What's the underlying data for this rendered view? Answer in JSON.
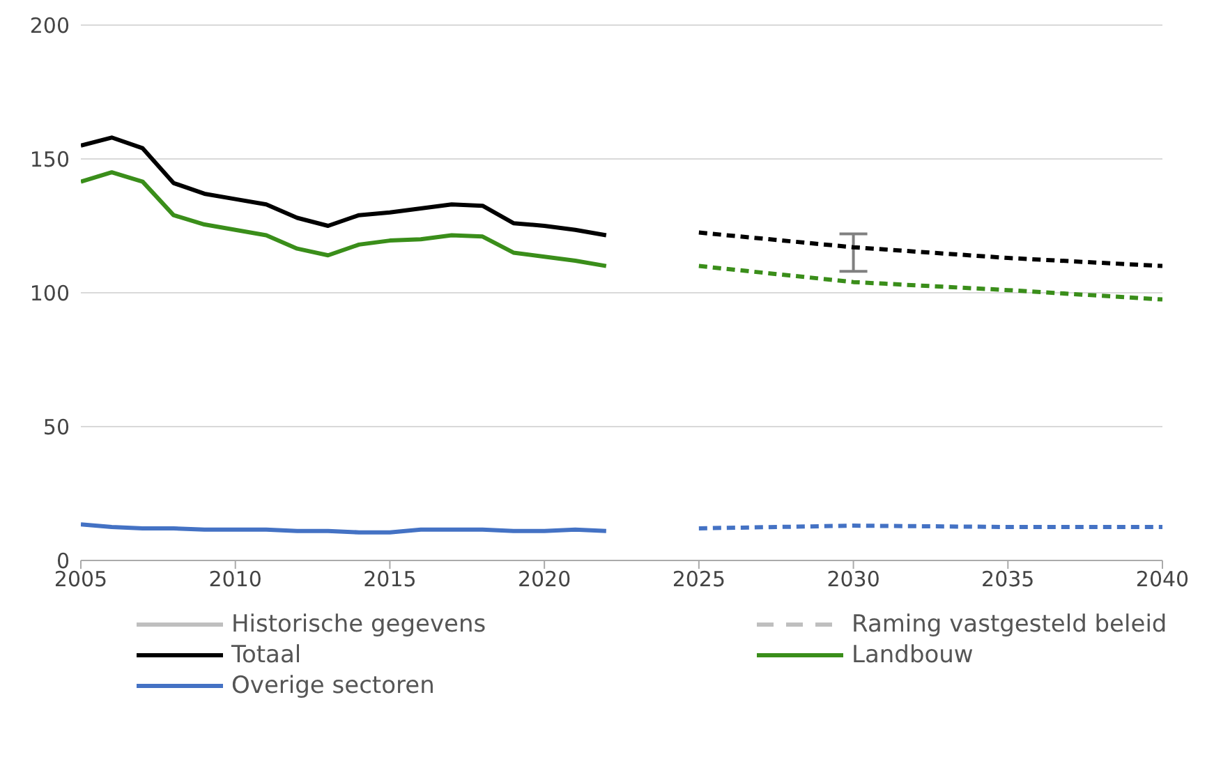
{
  "chart_data": {
    "type": "line",
    "xlim": [
      2005,
      2040
    ],
    "xticks": [
      2005,
      2010,
      2015,
      2020,
      2025,
      2030,
      2035,
      2040
    ],
    "ylim": [
      0,
      200
    ],
    "yticks": [
      0,
      50,
      100,
      150,
      200
    ],
    "grid": "y",
    "legend": "bottom",
    "marker": "none",
    "series": [
      {
        "name": "Historische gegevens",
        "color": "#bfbfbf",
        "line_style": "solid"
      },
      {
        "name": "Raming vastgesteld beleid",
        "color": "#bfbfbf",
        "line_style": "dashed"
      },
      {
        "name": "Totaal",
        "color": "#000000",
        "line_style": "solid",
        "x": [
          2005,
          2006,
          2007,
          2008,
          2009,
          2010,
          2011,
          2012,
          2013,
          2014,
          2015,
          2016,
          2017,
          2018,
          2019,
          2020,
          2021,
          2022
        ],
        "values": [
          155,
          158,
          154,
          141,
          137,
          135,
          133,
          128,
          125,
          129,
          130,
          131.5,
          133,
          132.5,
          126,
          125,
          123.5,
          121.5
        ]
      },
      {
        "name": "Landbouw",
        "color": "#3a8e1a",
        "line_style": "solid",
        "x": [
          2005,
          2006,
          2007,
          2008,
          2009,
          2010,
          2011,
          2012,
          2013,
          2014,
          2015,
          2016,
          2017,
          2018,
          2019,
          2020,
          2021,
          2022
        ],
        "values": [
          141.5,
          145,
          141.5,
          129,
          125.5,
          123.5,
          121.5,
          116.5,
          114,
          118,
          119.5,
          120,
          121.5,
          121,
          115,
          113.5,
          112,
          110
        ]
      },
      {
        "name": "Overige sectoren",
        "color": "#4472c4",
        "line_style": "solid",
        "x": [
          2005,
          2006,
          2007,
          2008,
          2009,
          2010,
          2011,
          2012,
          2013,
          2014,
          2015,
          2016,
          2017,
          2018,
          2019,
          2020,
          2021,
          2022
        ],
        "values": [
          13.5,
          12.5,
          12,
          12,
          11.5,
          11.5,
          11.5,
          11,
          11,
          10.5,
          10.5,
          11.5,
          11.5,
          11.5,
          11,
          11,
          11.5,
          11
        ]
      },
      {
        "color": "#000000",
        "line_style": "dashed",
        "x": [
          2025,
          2030,
          2035,
          2040
        ],
        "values": [
          122.5,
          117,
          113,
          110
        ],
        "errors": [
          null,
          [
            108,
            122
          ],
          null,
          null
        ]
      },
      {
        "color": "#3a8e1a",
        "line_style": "dashed",
        "x": [
          2025,
          2030,
          2035,
          2040
        ],
        "values": [
          110,
          104,
          101,
          97.5
        ]
      },
      {
        "color": "#4472c4",
        "line_style": "dashed",
        "x": [
          2025,
          2030,
          2035,
          2040
        ],
        "values": [
          12,
          13,
          12.5,
          12.5
        ]
      }
    ]
  }
}
